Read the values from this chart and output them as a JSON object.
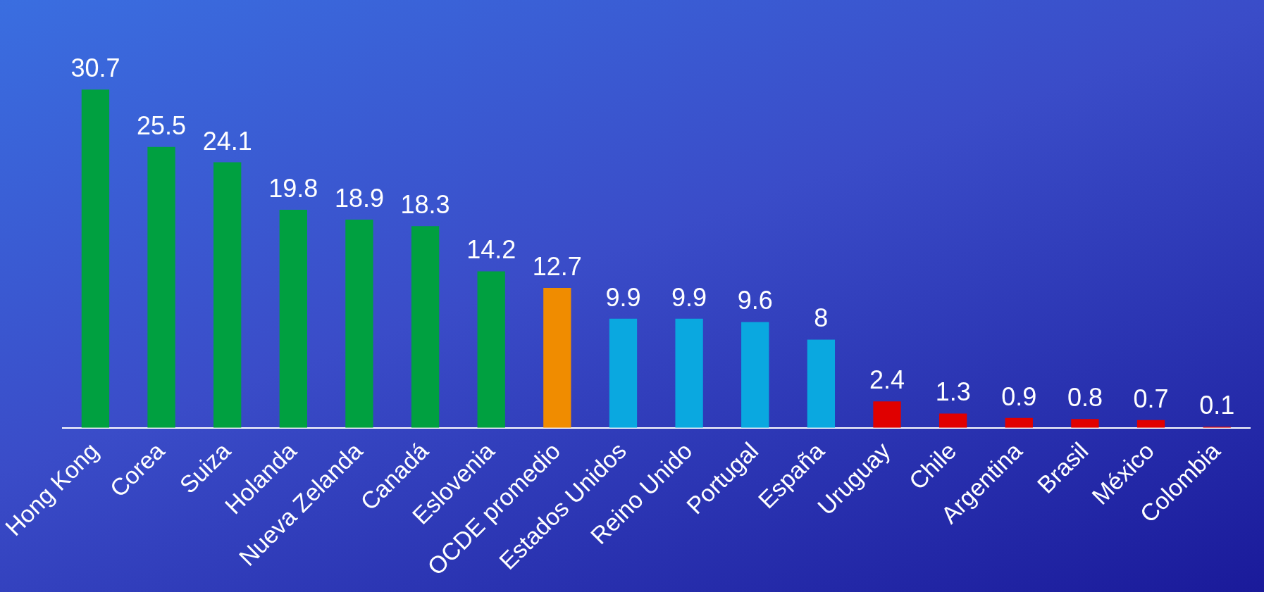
{
  "chart_data": {
    "type": "bar",
    "categories": [
      "Hong Kong",
      "Corea",
      "Suiza",
      "Holanda",
      "Nueva Zelanda",
      "Canadá",
      "Eslovenia",
      "OCDE promedio",
      "Estados Unidos",
      "Reino Unido",
      "Portugal",
      "España",
      "Uruguay",
      "Chile",
      "Argentina",
      "Brasil",
      "México",
      "Colombia"
    ],
    "values": [
      30.7,
      25.5,
      24.1,
      19.8,
      18.9,
      18.3,
      14.2,
      12.7,
      9.9,
      9.9,
      9.6,
      8,
      2.4,
      1.3,
      0.9,
      0.8,
      0.7,
      0.1
    ],
    "colors": [
      "#00a040",
      "#00a040",
      "#00a040",
      "#00a040",
      "#00a040",
      "#00a040",
      "#00a040",
      "#f08c00",
      "#0aa8e0",
      "#0aa8e0",
      "#0aa8e0",
      "#0aa8e0",
      "#e00000",
      "#e00000",
      "#e00000",
      "#e00000",
      "#e00000",
      "#e00000"
    ],
    "data_labels": true,
    "grid": false,
    "legend": false
  }
}
